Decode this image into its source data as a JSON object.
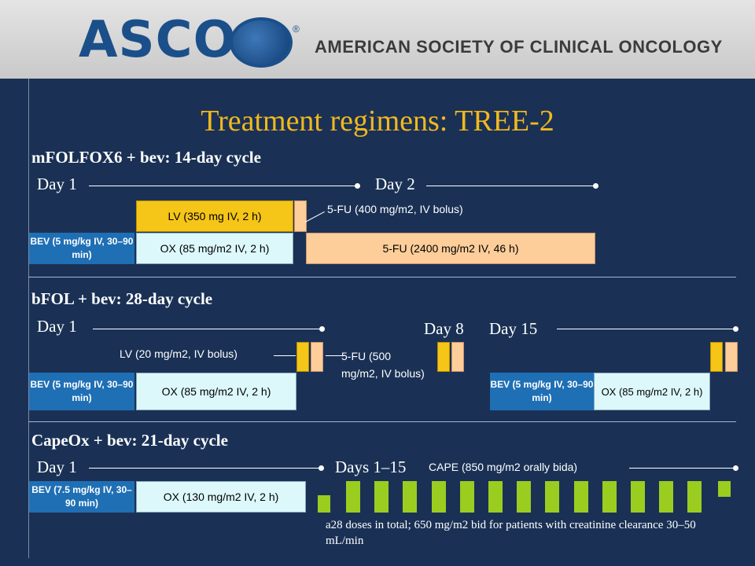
{
  "header": {
    "logo": "ASCO",
    "registered": "®",
    "society": "AMERICAN SOCIETY OF CLINICAL ONCOLOGY"
  },
  "title": "Treatment regimens: TREE-2",
  "sections": {
    "mfolfox6": {
      "title": "mFOLFOX6 + bev: 14-day cycle",
      "day1": "Day 1",
      "day2": "Day 2",
      "lv": "LV (350 mg IV, 2 h)",
      "fu_bolus": "5-FU (400 mg/m2, IV bolus)",
      "bev": "BEV (5 mg/kg IV, 30–90 min)",
      "ox": "OX (85 mg/m2 IV, 2 h)",
      "fu_infusion": "5-FU (2400 mg/m2 IV, 46 h)"
    },
    "bfol": {
      "title": "bFOL + bev: 28-day cycle",
      "day1": "Day 1",
      "day8": "Day 8",
      "day15": "Day 15",
      "lv": "LV (20 mg/m2, IV bolus)",
      "fu": "5-FU (500 mg/m2, IV bolus)",
      "bev": "BEV (5 mg/kg IV, 30–90 min)",
      "ox": "OX (85 mg/m2 IV, 2 h)",
      "bev2": "BEV (5 mg/kg IV, 30–90 min)",
      "ox2": "OX (85 mg/m2 IV, 2 h)"
    },
    "capeox": {
      "title": "CapeOx + bev: 21-day cycle",
      "day1": "Day 1",
      "days": "Days 1–15",
      "cape": "CAPE (850 mg/m2 orally bida)",
      "bev": "BEV (7.5 mg/kg IV, 30–90 min)",
      "ox": "OX (130 mg/m2 IV, 2 h)"
    }
  },
  "footnote": "a28 doses in total; 650 mg/m2 bid for patients with creatinine clearance 30–50 mL/min",
  "colors": {
    "background": "#1a3155",
    "title": "#f1b81d",
    "bev": "#1f6fb5",
    "ox": "#dcf8fb",
    "lv": "#f5c518",
    "fu": "#fdcd9a",
    "cape": "#9acd1f"
  }
}
